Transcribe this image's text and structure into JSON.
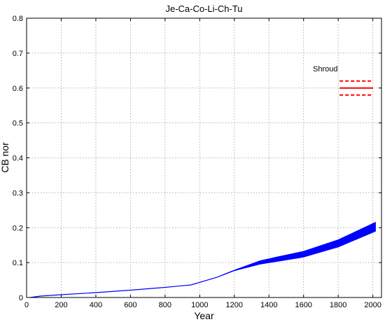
{
  "chart_data": {
    "type": "area",
    "title": "Je-Ca-Co-Li-Ch-Tu",
    "xlabel": "Year",
    "ylabel": "CB nor",
    "xlim": [
      0,
      2050
    ],
    "ylim": [
      0,
      0.8
    ],
    "x_ticks": [
      0,
      200,
      400,
      600,
      800,
      1000,
      1200,
      1400,
      1600,
      1800,
      2000
    ],
    "y_ticks": [
      0,
      0.1,
      0.2,
      0.3,
      0.4,
      0.5,
      0.6,
      0.7,
      0.8
    ],
    "grid": true,
    "band": {
      "color": "#0000ff",
      "x": [
        20,
        80,
        200,
        400,
        600,
        800,
        950,
        1100,
        1200,
        1350,
        1450,
        1600,
        1800,
        2015
      ],
      "lower": [
        0.0,
        0.004,
        0.008,
        0.014,
        0.021,
        0.029,
        0.036,
        0.058,
        0.077,
        0.096,
        0.104,
        0.116,
        0.145,
        0.19
      ],
      "upper": [
        0.0,
        0.004,
        0.008,
        0.014,
        0.021,
        0.029,
        0.036,
        0.058,
        0.078,
        0.105,
        0.116,
        0.132,
        0.165,
        0.215
      ]
    },
    "annotation": {
      "label": "Shroud",
      "color": "#ff0000",
      "x_range": [
        1800,
        2050
      ],
      "center": 0.6,
      "lower": 0.58,
      "upper": 0.62
    }
  }
}
